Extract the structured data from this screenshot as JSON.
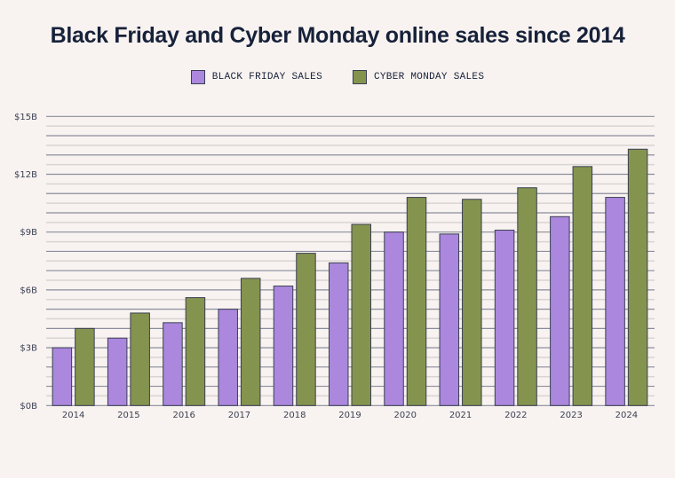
{
  "chart_data": {
    "type": "bar",
    "title": "Black Friday and Cyber Monday online sales since 2014",
    "categories": [
      "2014",
      "2015",
      "2016",
      "2017",
      "2018",
      "2019",
      "2020",
      "2021",
      "2022",
      "2023",
      "2024"
    ],
    "series": [
      {
        "name": "BLACK FRIDAY SALES",
        "color": "#ab87dd",
        "values": [
          3.0,
          3.5,
          4.3,
          5.0,
          6.2,
          7.4,
          9.0,
          8.9,
          9.1,
          9.8,
          10.8
        ]
      },
      {
        "name": "CYBER MONDAY SALES",
        "color": "#84944f",
        "values": [
          4.0,
          4.8,
          5.6,
          6.6,
          7.9,
          9.4,
          10.8,
          10.7,
          11.3,
          12.4,
          13.3
        ]
      }
    ],
    "xlabel": "",
    "ylabel": "",
    "ylim": [
      0,
      15
    ],
    "yticks": [
      0,
      3,
      6,
      9,
      12,
      15
    ],
    "ytick_labels": [
      "$0B",
      "$3B",
      "$6B",
      "$9B",
      "$12B",
      "$15B"
    ],
    "grid": true,
    "legend_position": "top-center"
  }
}
